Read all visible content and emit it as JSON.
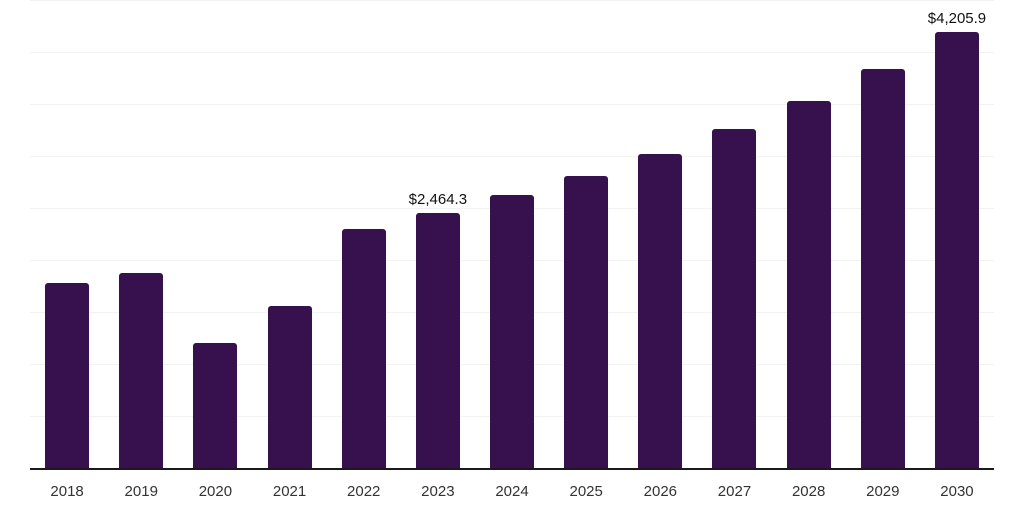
{
  "chart_data": {
    "type": "bar",
    "title": "",
    "xlabel": "",
    "ylabel": "",
    "categories": [
      "2018",
      "2019",
      "2020",
      "2021",
      "2022",
      "2023",
      "2024",
      "2025",
      "2026",
      "2027",
      "2028",
      "2029",
      "2030"
    ],
    "values": [
      1790,
      1885,
      1210,
      1565,
      2310,
      2464.3,
      2635,
      2815,
      3030,
      3270,
      3540,
      3845,
      4205.9
    ],
    "data_labels": [
      "",
      "",
      "",
      "",
      "",
      "$2,464.3",
      "",
      "",
      "",
      "",
      "",
      "",
      "$4,205.9"
    ],
    "ylim": [
      0,
      4500
    ],
    "gridline_step": 500,
    "grid": true,
    "legend_position": "none",
    "y_axis_tick_labels_visible": false,
    "colors": {
      "bar": "#36114d",
      "gridline": "#f2f2f2",
      "axis_line": "#1a1a1a",
      "tick_label": "#333333",
      "data_label": "#111111",
      "background": "#ffffff"
    }
  }
}
